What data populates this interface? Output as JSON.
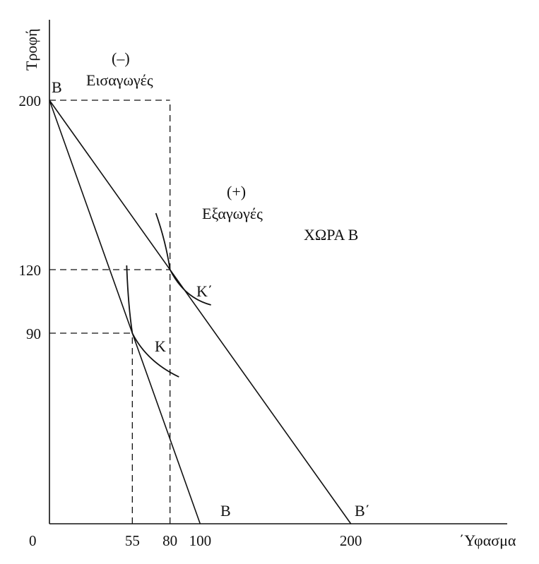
{
  "chart_data": {
    "type": "line",
    "xlabel": "΄Υφασμα",
    "ylabel": "Τροφή",
    "origin_label": "0",
    "xlim": [
      0,
      275
    ],
    "ylim": [
      0,
      200
    ],
    "x_ticks": [
      55,
      80,
      100,
      200
    ],
    "y_ticks": [
      90,
      120,
      200
    ],
    "series": [
      {
        "name": "B–B",
        "points": [
          [
            0,
            200
          ],
          [
            100,
            0
          ]
        ]
      },
      {
        "name": "B–B΄",
        "points": [
          [
            0,
            200
          ],
          [
            200,
            0
          ]
        ]
      }
    ],
    "indifference_curves": [
      {
        "label": "K",
        "tangent_point": [
          55,
          90
        ]
      },
      {
        "label": "K΄",
        "tangent_point": [
          80,
          120
        ]
      }
    ],
    "guide_lines": [
      {
        "from": [
          0,
          200
        ],
        "to": [
          80,
          200
        ]
      },
      {
        "from": [
          0,
          120
        ],
        "to": [
          80,
          120
        ]
      },
      {
        "from": [
          0,
          90
        ],
        "to": [
          55,
          90
        ]
      },
      {
        "from": [
          80,
          0
        ],
        "to": [
          80,
          200
        ]
      },
      {
        "from": [
          55,
          0
        ],
        "to": [
          55,
          90
        ]
      }
    ],
    "point_labels": {
      "top_b": "B",
      "b_end": "B",
      "b_prime_end": "B΄",
      "k": "K",
      "k_prime": "K΄"
    },
    "annotations": {
      "imports_sign": "(–)",
      "imports": "Εισαγωγές",
      "exports_sign": "(+)",
      "exports": "Εξαγωγές",
      "country": "ΧΩΡΑ Β"
    }
  }
}
